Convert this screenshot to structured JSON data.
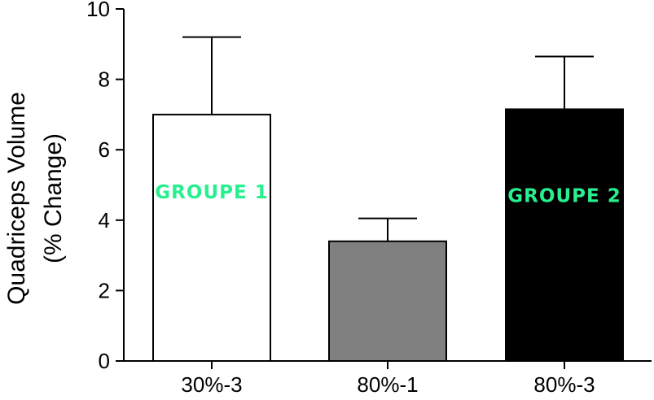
{
  "chart_data": {
    "type": "bar",
    "categories": [
      "30%-3",
      "80%-1",
      "80%-3"
    ],
    "values": [
      7.0,
      3.4,
      7.15
    ],
    "errors": [
      2.2,
      0.65,
      1.5
    ],
    "bar_colors": [
      "#ffffff",
      "#808080",
      "#000000"
    ],
    "ylabel_line1": "Quadriceps Volume",
    "ylabel_line2": "(% Change)",
    "ylim": [
      0,
      10
    ],
    "yticks": [
      0,
      2,
      4,
      6,
      8,
      10
    ],
    "ytick_labels": [
      "0",
      "2",
      "4",
      "6",
      "8",
      "10"
    ],
    "grid": false,
    "annotations": [
      {
        "text": "GROUPE 1",
        "category": "30%-3",
        "y": 4.8
      },
      {
        "text": "GROUPE 2",
        "category": "80%-3",
        "y": 4.7
      }
    ],
    "annotation_color": "#27f08f"
  }
}
